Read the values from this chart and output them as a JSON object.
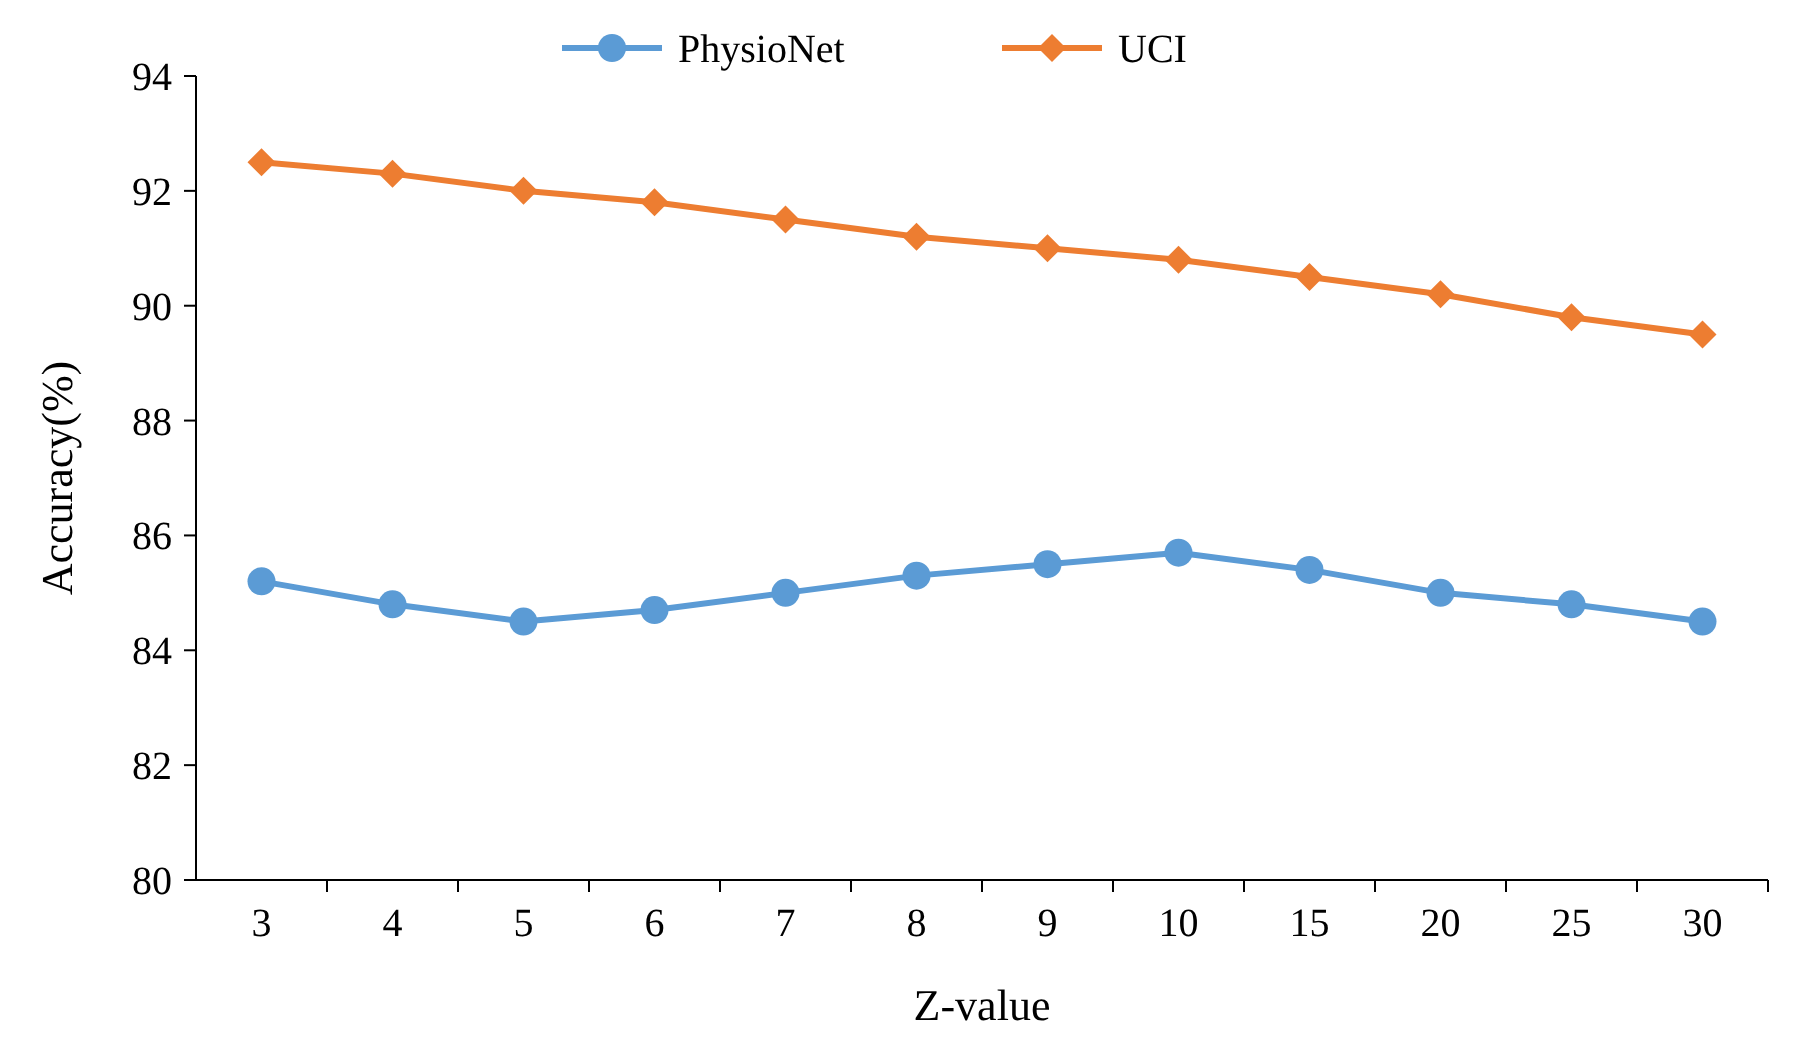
{
  "chart_data": {
    "type": "line",
    "xlabel": "Z-value",
    "ylabel": "Accuracy(%)",
    "categories": [
      "3",
      "4",
      "5",
      "6",
      "7",
      "8",
      "9",
      "10",
      "15",
      "20",
      "25",
      "30"
    ],
    "series": [
      {
        "name": "PhysioNet",
        "color": "#5b9bd5",
        "marker": "circle",
        "values": [
          85.2,
          84.8,
          84.5,
          84.7,
          85.0,
          85.3,
          85.5,
          85.7,
          85.4,
          85.0,
          84.8,
          84.5
        ]
      },
      {
        "name": "UCI",
        "color": "#ed7d31",
        "marker": "diamond",
        "values": [
          92.5,
          92.3,
          92.0,
          91.8,
          91.5,
          91.2,
          91.0,
          90.8,
          90.5,
          90.2,
          89.8,
          89.5
        ]
      }
    ],
    "ylim": [
      80,
      94
    ],
    "yticks": [
      80,
      82,
      84,
      86,
      88,
      90,
      92,
      94
    ],
    "grid": false,
    "legend": "top",
    "line_style": "solid"
  }
}
